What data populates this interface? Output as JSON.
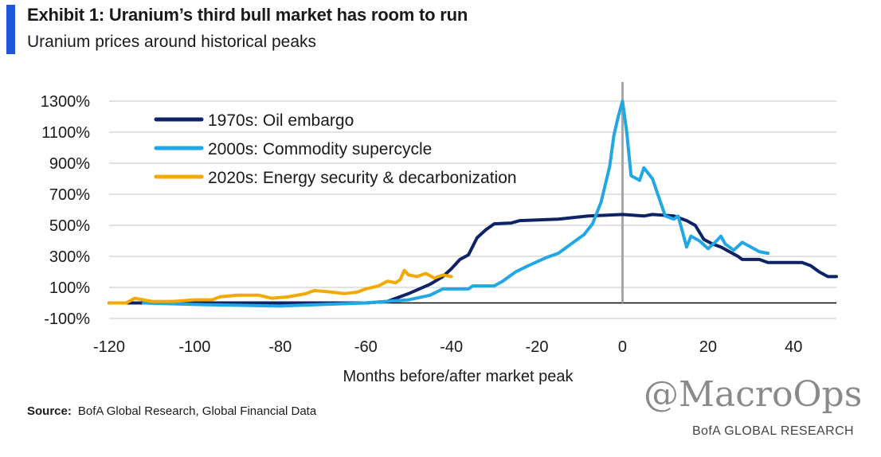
{
  "header": {
    "title": "Exhibit 1: Uranium’s third bull market has room to run",
    "subtitle": "Uranium prices around historical peaks"
  },
  "footer": {
    "source_label": "Source:",
    "source_text": "BofA Global Research, Global Financial Data",
    "brand": "BofA GLOBAL RESEARCH",
    "watermark": "@MacroOps"
  },
  "colors": {
    "series_1970s": "#0d2366",
    "series_2000s": "#22a7e6",
    "series_2020s": "#f2a900",
    "accent": "#1f56d8",
    "grid": "#d9d9d9",
    "peak_line": "#a6a6a6"
  },
  "chart_data": {
    "type": "line",
    "title": "Exhibit 1: Uranium’s third bull market has room to run",
    "subtitle": "Uranium prices around historical peaks",
    "xlabel": "Months before/after market peak",
    "ylabel": "",
    "xlim": [
      -120,
      50
    ],
    "ylim": [
      -100,
      1300
    ],
    "xticks": [
      -120,
      -100,
      -80,
      -60,
      -40,
      -20,
      0,
      20,
      40
    ],
    "xtick_labels": [
      "-120",
      "-100",
      "-80",
      "-60",
      "-40",
      "-20",
      "0",
      "20",
      "40"
    ],
    "yticks": [
      -100,
      100,
      300,
      500,
      700,
      900,
      1100,
      1300
    ],
    "ytick_labels": [
      "-100%",
      "100%",
      "300%",
      "500%",
      "700%",
      "900%",
      "1100%",
      "1300%"
    ],
    "grid": true,
    "legend_position": "top-left",
    "peak_marker_x": 0,
    "series": [
      {
        "name": "1970s: Oil embargo",
        "points": [
          [
            -120,
            0
          ],
          [
            -100,
            0
          ],
          [
            -80,
            0
          ],
          [
            -65,
            0
          ],
          [
            -60,
            0
          ],
          [
            -55,
            10
          ],
          [
            -50,
            60
          ],
          [
            -45,
            120
          ],
          [
            -42,
            170
          ],
          [
            -40,
            220
          ],
          [
            -38,
            280
          ],
          [
            -36,
            310
          ],
          [
            -34,
            420
          ],
          [
            -32,
            470
          ],
          [
            -30,
            510
          ],
          [
            -26,
            515
          ],
          [
            -24,
            530
          ],
          [
            -15,
            540
          ],
          [
            -8,
            560
          ],
          [
            0,
            570
          ],
          [
            5,
            560
          ],
          [
            7,
            570
          ],
          [
            12,
            560
          ],
          [
            15,
            530
          ],
          [
            17,
            500
          ],
          [
            19,
            410
          ],
          [
            21,
            380
          ],
          [
            23,
            360
          ],
          [
            25,
            330
          ],
          [
            27,
            300
          ],
          [
            28,
            280
          ],
          [
            32,
            280
          ],
          [
            34,
            260
          ],
          [
            42,
            260
          ],
          [
            44,
            240
          ],
          [
            46,
            200
          ],
          [
            48,
            170
          ],
          [
            50,
            170
          ]
        ]
      },
      {
        "name": "2000s: Commodity supercycle",
        "points": [
          [
            -112,
            0
          ],
          [
            -100,
            -10
          ],
          [
            -80,
            -20
          ],
          [
            -70,
            -10
          ],
          [
            -60,
            0
          ],
          [
            -50,
            20
          ],
          [
            -45,
            50
          ],
          [
            -42,
            90
          ],
          [
            -36,
            90
          ],
          [
            -35,
            110
          ],
          [
            -30,
            110
          ],
          [
            -28,
            140
          ],
          [
            -25,
            200
          ],
          [
            -22,
            240
          ],
          [
            -18,
            290
          ],
          [
            -15,
            320
          ],
          [
            -12,
            380
          ],
          [
            -9,
            440
          ],
          [
            -7,
            510
          ],
          [
            -5,
            650
          ],
          [
            -3,
            880
          ],
          [
            -2,
            1080
          ],
          [
            -1,
            1200
          ],
          [
            0,
            1300
          ],
          [
            1,
            1100
          ],
          [
            2,
            820
          ],
          [
            4,
            790
          ],
          [
            5,
            870
          ],
          [
            7,
            800
          ],
          [
            9,
            640
          ],
          [
            10,
            560
          ],
          [
            12,
            540
          ],
          [
            13,
            560
          ],
          [
            14,
            460
          ],
          [
            15,
            360
          ],
          [
            16,
            430
          ],
          [
            18,
            400
          ],
          [
            20,
            350
          ],
          [
            22,
            400
          ],
          [
            23,
            430
          ],
          [
            24,
            380
          ],
          [
            26,
            340
          ],
          [
            28,
            390
          ],
          [
            30,
            360
          ],
          [
            32,
            330
          ],
          [
            34,
            320
          ]
        ]
      },
      {
        "name": "2020s: Energy security & decarbonization",
        "points": [
          [
            -120,
            0
          ],
          [
            -116,
            0
          ],
          [
            -114,
            30
          ],
          [
            -112,
            20
          ],
          [
            -110,
            10
          ],
          [
            -105,
            10
          ],
          [
            -100,
            20
          ],
          [
            -96,
            20
          ],
          [
            -94,
            40
          ],
          [
            -90,
            50
          ],
          [
            -85,
            50
          ],
          [
            -82,
            30
          ],
          [
            -78,
            40
          ],
          [
            -74,
            60
          ],
          [
            -72,
            80
          ],
          [
            -68,
            70
          ],
          [
            -65,
            60
          ],
          [
            -62,
            70
          ],
          [
            -60,
            90
          ],
          [
            -57,
            110
          ],
          [
            -55,
            140
          ],
          [
            -53,
            130
          ],
          [
            -52,
            150
          ],
          [
            -51,
            210
          ],
          [
            -50,
            180
          ],
          [
            -48,
            170
          ],
          [
            -46,
            190
          ],
          [
            -44,
            160
          ],
          [
            -42,
            180
          ],
          [
            -40,
            170
          ]
        ]
      }
    ]
  }
}
